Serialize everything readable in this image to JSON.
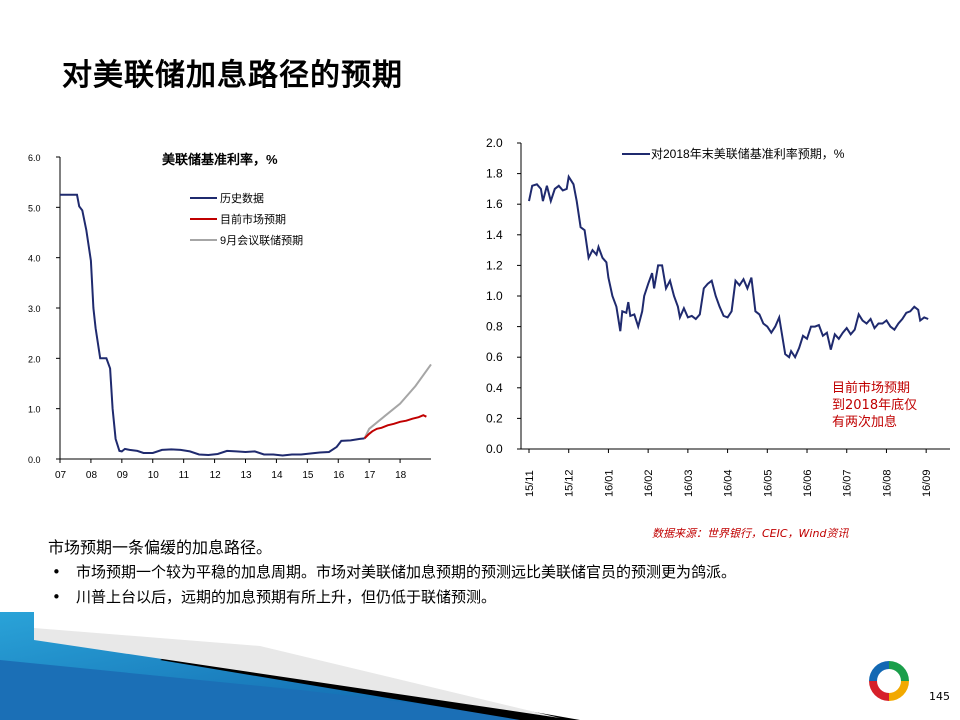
{
  "page": {
    "title": "对美联储加息路径的预期",
    "summary": "市场预期一条偏缓的加息路径。",
    "bullets": [
      "市场预期一个较为平稳的加息周期。市场对美联储加息预期的预测远比美联储官员的预测更为鸽派。",
      "川普上台以后，远期的加息预期有所上升，但仍低于联储预测。"
    ],
    "bullet_symbol": "•",
    "source": "数据来源：世界银行，CEIC，Wind资讯",
    "annotation": [
      "目前市场预期",
      "到2018年底仅",
      "有两次加息"
    ],
    "page_number": "145"
  },
  "chart_data": [
    {
      "type": "line",
      "title": "美联储基准利率，%",
      "xlabel": "",
      "ylabel": "",
      "ylim": [
        0,
        6
      ],
      "xlim": [
        2007.0,
        2019.0
      ],
      "yticks": [
        "0.0",
        "1.0",
        "2.0",
        "3.0",
        "4.0",
        "5.0",
        "6.0"
      ],
      "xticks": [
        "07",
        "08",
        "09",
        "10",
        "11",
        "12",
        "13",
        "14",
        "15",
        "16",
        "17",
        "18"
      ],
      "legend_position": "top-center",
      "series": [
        {
          "name": "历史数据",
          "color": "#1f2a6e",
          "points": [
            [
              2007.0,
              5.25
            ],
            [
              2007.55,
              5.25
            ],
            [
              2007.62,
              5.02
            ],
            [
              2007.72,
              4.94
            ],
            [
              2007.85,
              4.55
            ],
            [
              2008.0,
              3.94
            ],
            [
              2008.08,
              3.0
            ],
            [
              2008.15,
              2.6
            ],
            [
              2008.3,
              2.0
            ],
            [
              2008.5,
              2.0
            ],
            [
              2008.62,
              1.8
            ],
            [
              2008.7,
              1.0
            ],
            [
              2008.8,
              0.4
            ],
            [
              2008.92,
              0.16
            ],
            [
              2009.0,
              0.15
            ],
            [
              2009.1,
              0.2
            ],
            [
              2009.25,
              0.18
            ],
            [
              2009.5,
              0.16
            ],
            [
              2009.7,
              0.12
            ],
            [
              2010.0,
              0.12
            ],
            [
              2010.3,
              0.18
            ],
            [
              2010.6,
              0.19
            ],
            [
              2010.9,
              0.18
            ],
            [
              2011.2,
              0.15
            ],
            [
              2011.5,
              0.09
            ],
            [
              2011.8,
              0.08
            ],
            [
              2012.1,
              0.1
            ],
            [
              2012.4,
              0.16
            ],
            [
              2012.7,
              0.15
            ],
            [
              2013.0,
              0.14
            ],
            [
              2013.3,
              0.15
            ],
            [
              2013.6,
              0.09
            ],
            [
              2013.9,
              0.09
            ],
            [
              2014.2,
              0.07
            ],
            [
              2014.5,
              0.09
            ],
            [
              2014.8,
              0.09
            ],
            [
              2015.1,
              0.11
            ],
            [
              2015.4,
              0.13
            ],
            [
              2015.7,
              0.14
            ],
            [
              2015.95,
              0.24
            ],
            [
              2016.1,
              0.36
            ],
            [
              2016.4,
              0.37
            ],
            [
              2016.7,
              0.4
            ],
            [
              2016.85,
              0.41
            ]
          ]
        },
        {
          "name": "目前市场预期",
          "color": "#c00000",
          "points": [
            [
              2016.85,
              0.41
            ],
            [
              2017.0,
              0.5
            ],
            [
              2017.1,
              0.55
            ],
            [
              2017.25,
              0.6
            ],
            [
              2017.4,
              0.62
            ],
            [
              2017.6,
              0.67
            ],
            [
              2017.8,
              0.7
            ],
            [
              2018.0,
              0.74
            ],
            [
              2018.2,
              0.76
            ],
            [
              2018.4,
              0.8
            ],
            [
              2018.6,
              0.83
            ],
            [
              2018.75,
              0.87
            ],
            [
              2018.85,
              0.84
            ]
          ]
        },
        {
          "name": "9月会议联储预期",
          "color": "#a6a6a6",
          "points": [
            [
              2016.85,
              0.41
            ],
            [
              2017.0,
              0.6
            ],
            [
              2017.5,
              0.85
            ],
            [
              2018.0,
              1.1
            ],
            [
              2018.5,
              1.45
            ],
            [
              2019.0,
              1.88
            ]
          ]
        }
      ]
    },
    {
      "type": "line",
      "title": "",
      "xlabel": "",
      "ylabel": "",
      "ylim": [
        0,
        2
      ],
      "yticks": [
        "0.0",
        "0.2",
        "0.4",
        "0.6",
        "0.8",
        "1.0",
        "1.2",
        "1.4",
        "1.6",
        "1.8",
        "2.0"
      ],
      "xticks": [
        "15/11",
        "15/12",
        "16/01",
        "16/02",
        "16/03",
        "16/04",
        "16/05",
        "16/06",
        "16/07",
        "16/08",
        "16/09"
      ],
      "xlim": [
        0,
        10.6
      ],
      "legend_position": "top-right",
      "series": [
        {
          "name": "对2018年末美联储基准利率预期，%",
          "color": "#1f2a6e",
          "points": [
            [
              0.0,
              1.62
            ],
            [
              0.08,
              1.72
            ],
            [
              0.2,
              1.73
            ],
            [
              0.3,
              1.7
            ],
            [
              0.35,
              1.62
            ],
            [
              0.45,
              1.72
            ],
            [
              0.55,
              1.62
            ],
            [
              0.65,
              1.7
            ],
            [
              0.75,
              1.72
            ],
            [
              0.85,
              1.69
            ],
            [
              0.95,
              1.7
            ],
            [
              1.0,
              1.78
            ],
            [
              1.12,
              1.73
            ],
            [
              1.2,
              1.62
            ],
            [
              1.3,
              1.45
            ],
            [
              1.4,
              1.43
            ],
            [
              1.5,
              1.25
            ],
            [
              1.6,
              1.3
            ],
            [
              1.7,
              1.27
            ],
            [
              1.75,
              1.32
            ],
            [
              1.85,
              1.25
            ],
            [
              1.95,
              1.22
            ],
            [
              2.0,
              1.12
            ],
            [
              2.1,
              1.0
            ],
            [
              2.2,
              0.93
            ],
            [
              2.3,
              0.77
            ],
            [
              2.35,
              0.9
            ],
            [
              2.45,
              0.89
            ],
            [
              2.5,
              0.96
            ],
            [
              2.55,
              0.87
            ],
            [
              2.65,
              0.88
            ],
            [
              2.75,
              0.8
            ],
            [
              2.85,
              0.9
            ],
            [
              2.9,
              1.0
            ],
            [
              3.0,
              1.08
            ],
            [
              3.1,
              1.15
            ],
            [
              3.15,
              1.05
            ],
            [
              3.25,
              1.2
            ],
            [
              3.35,
              1.2
            ],
            [
              3.45,
              1.05
            ],
            [
              3.55,
              1.1
            ],
            [
              3.65,
              1.0
            ],
            [
              3.75,
              0.93
            ],
            [
              3.8,
              0.86
            ],
            [
              3.9,
              0.92
            ],
            [
              4.0,
              0.86
            ],
            [
              4.1,
              0.87
            ],
            [
              4.2,
              0.85
            ],
            [
              4.3,
              0.88
            ],
            [
              4.4,
              1.05
            ],
            [
              4.5,
              1.08
            ],
            [
              4.6,
              1.1
            ],
            [
              4.7,
              1.0
            ],
            [
              4.8,
              0.93
            ],
            [
              4.9,
              0.87
            ],
            [
              5.0,
              0.86
            ],
            [
              5.1,
              0.9
            ],
            [
              5.2,
              1.1
            ],
            [
              5.3,
              1.07
            ],
            [
              5.4,
              1.11
            ],
            [
              5.5,
              1.05
            ],
            [
              5.6,
              1.12
            ],
            [
              5.7,
              0.9
            ],
            [
              5.8,
              0.88
            ],
            [
              5.9,
              0.82
            ],
            [
              6.0,
              0.8
            ],
            [
              6.1,
              0.76
            ],
            [
              6.2,
              0.8
            ],
            [
              6.3,
              0.86
            ],
            [
              6.4,
              0.7
            ],
            [
              6.45,
              0.62
            ],
            [
              6.55,
              0.6
            ],
            [
              6.6,
              0.64
            ],
            [
              6.7,
              0.6
            ],
            [
              6.8,
              0.66
            ],
            [
              6.9,
              0.74
            ],
            [
              7.0,
              0.72
            ],
            [
              7.1,
              0.8
            ],
            [
              7.2,
              0.8
            ],
            [
              7.3,
              0.81
            ],
            [
              7.4,
              0.74
            ],
            [
              7.5,
              0.76
            ],
            [
              7.6,
              0.65
            ],
            [
              7.7,
              0.75
            ],
            [
              7.8,
              0.72
            ],
            [
              7.9,
              0.76
            ],
            [
              8.0,
              0.79
            ],
            [
              8.1,
              0.75
            ],
            [
              8.2,
              0.78
            ],
            [
              8.3,
              0.88
            ],
            [
              8.4,
              0.84
            ],
            [
              8.5,
              0.82
            ],
            [
              8.6,
              0.85
            ],
            [
              8.7,
              0.79
            ],
            [
              8.8,
              0.82
            ],
            [
              8.9,
              0.82
            ],
            [
              9.0,
              0.84
            ],
            [
              9.1,
              0.8
            ],
            [
              9.2,
              0.78
            ],
            [
              9.3,
              0.82
            ],
            [
              9.4,
              0.85
            ],
            [
              9.5,
              0.89
            ],
            [
              9.6,
              0.9
            ],
            [
              9.7,
              0.93
            ],
            [
              9.8,
              0.91
            ],
            [
              9.85,
              0.84
            ],
            [
              9.95,
              0.86
            ],
            [
              10.05,
              0.85
            ]
          ]
        }
      ]
    }
  ]
}
